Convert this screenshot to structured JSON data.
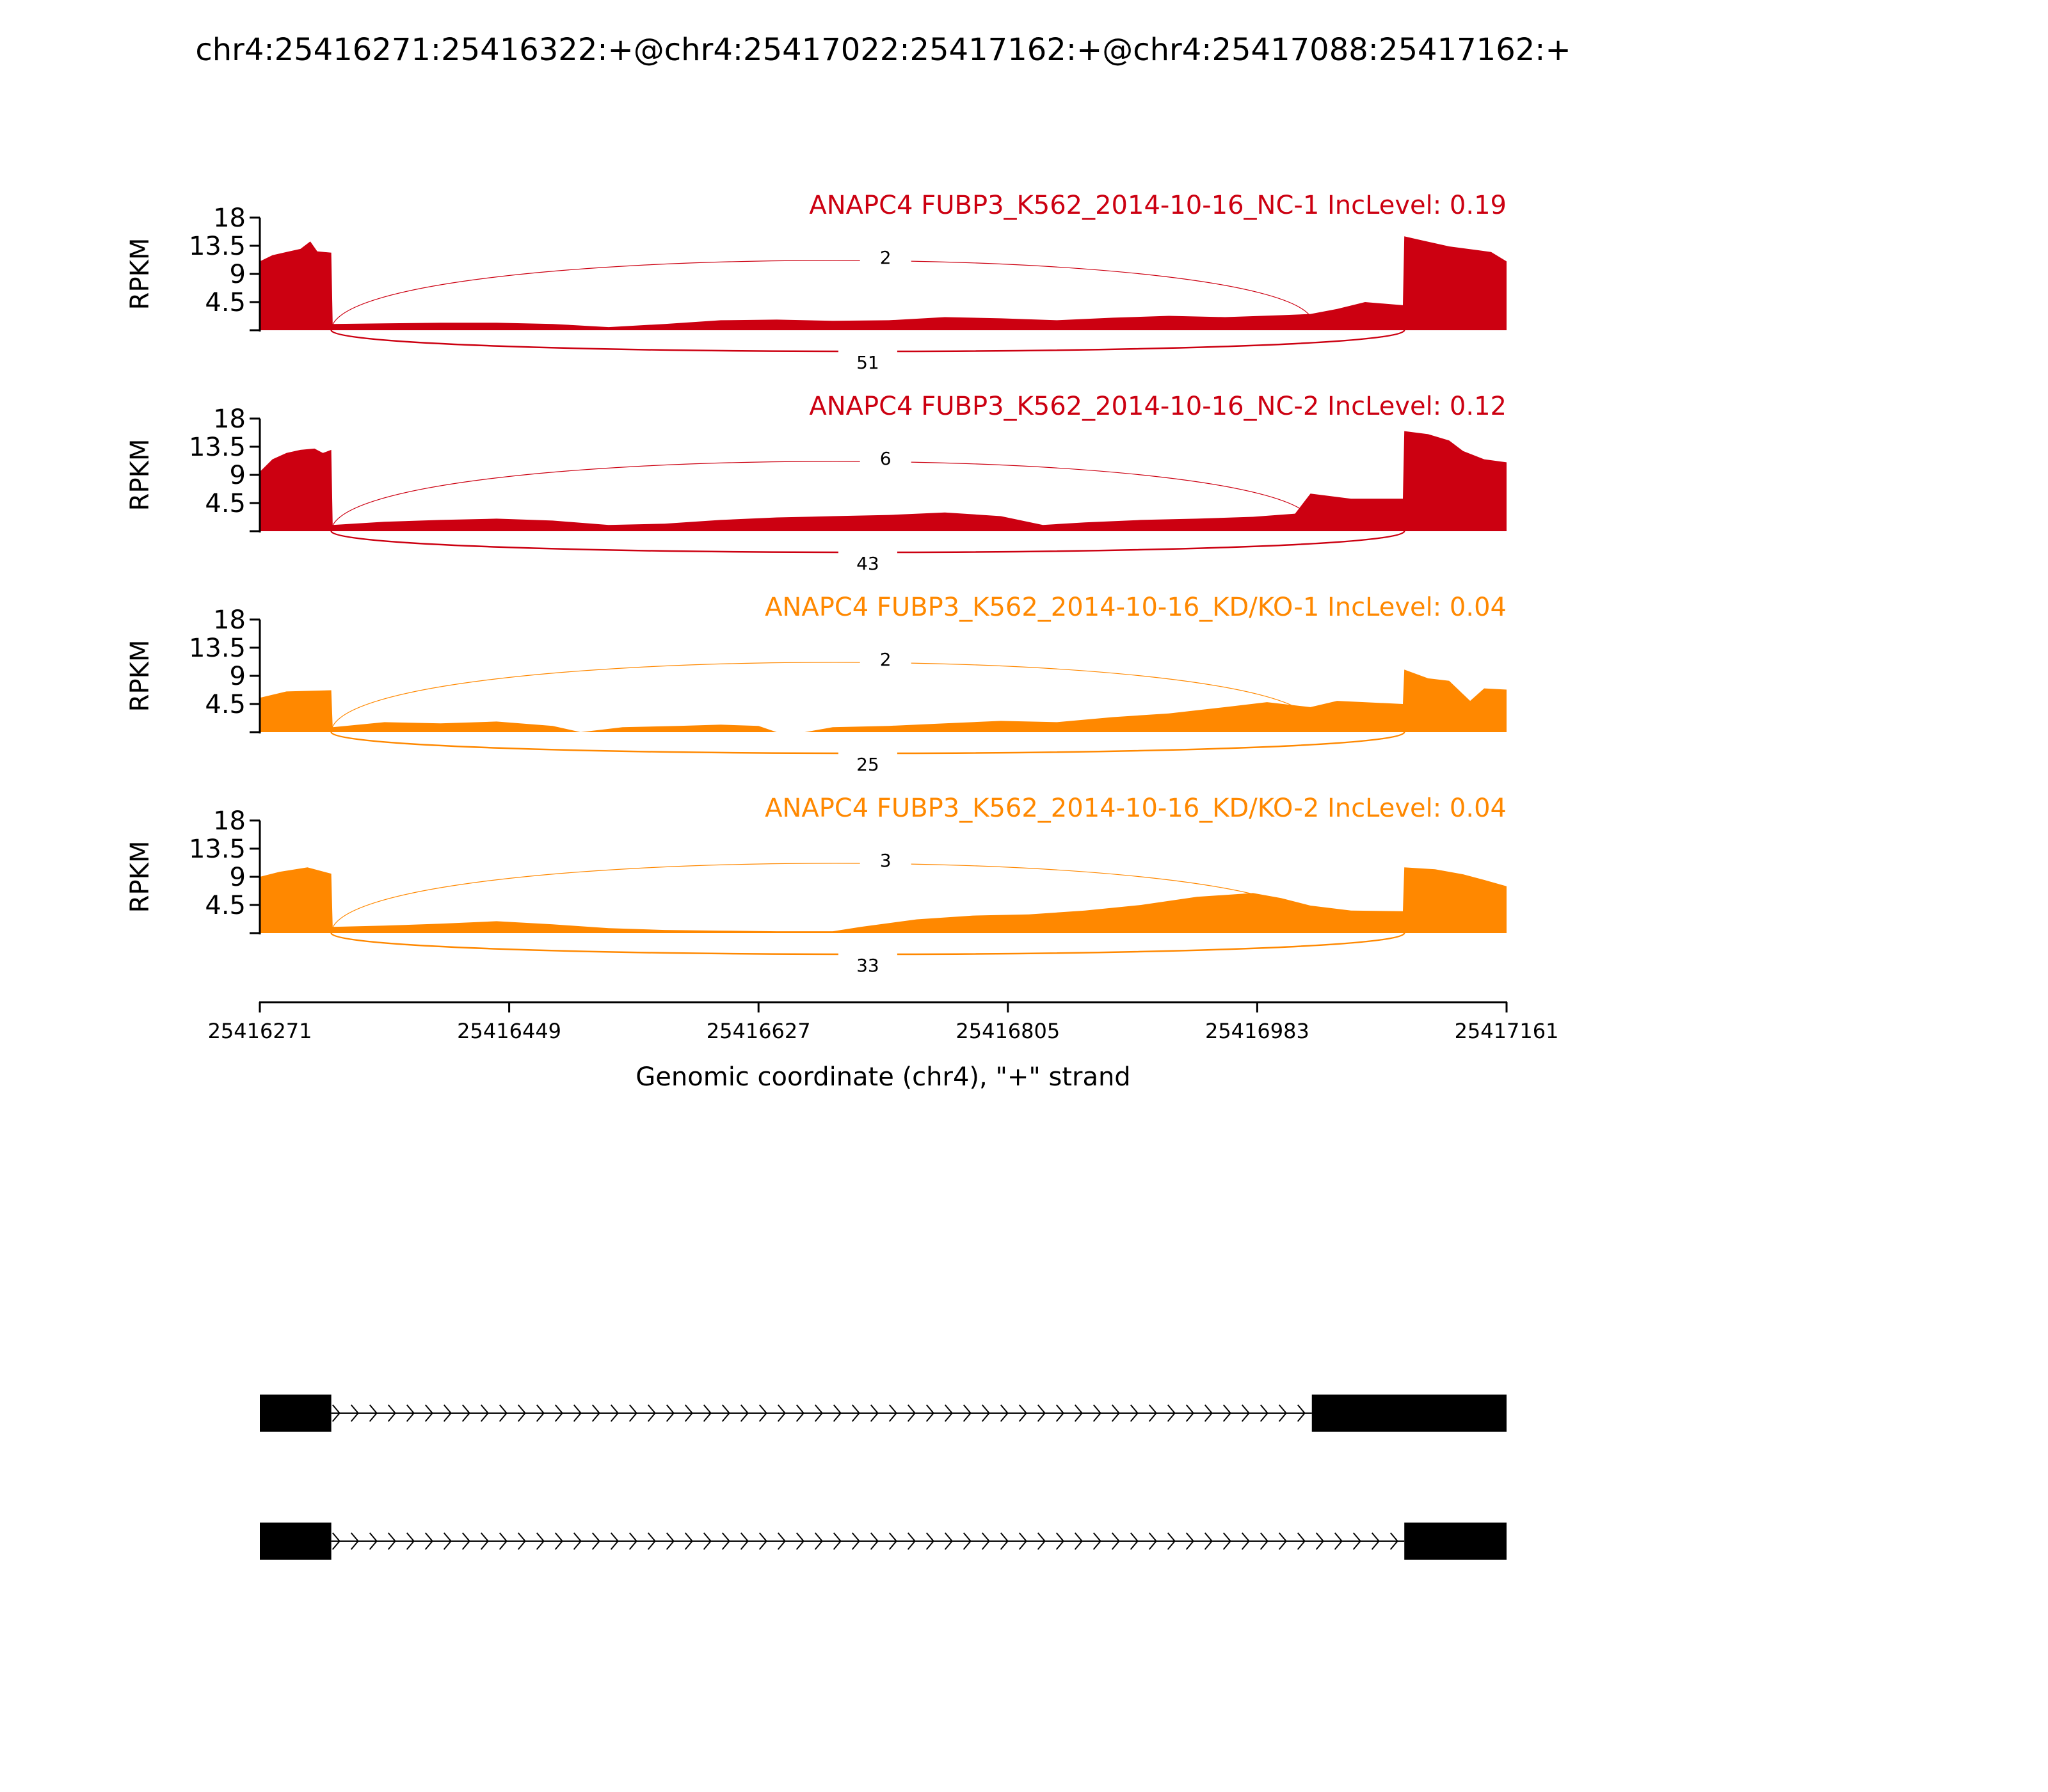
{
  "chart_data": {
    "type": "area",
    "title": "chr4:25416271:25416322:+@chr4:25417022:25417162:+@chr4:25417088:25417162:+",
    "xlabel": "Genomic coordinate (chr4), \"+\" strand",
    "ylabel": "RPKM",
    "xlim": [
      25416271,
      25417161
    ],
    "ylim": [
      0,
      18
    ],
    "x_ticks": [
      "25416271",
      "25416449",
      "25416627",
      "25416805",
      "25416983",
      "25417161"
    ],
    "y_ticks": [
      "4.5",
      "9",
      "13.5",
      "18"
    ],
    "colors": {
      "nc": "#cc0011",
      "kd": "#ff8800"
    },
    "exons": {
      "upstream": [
        25416271,
        25416322
      ],
      "skipped": [
        25417022,
        25417088
      ],
      "downstream": [
        25417088,
        25417161
      ]
    },
    "series": [
      {
        "name": "ANAPC4 FUBP3_K562_2014-10-16_NC-1 IncLevel: 0.19",
        "color": "#cc0011",
        "junctions": {
          "upper": "2",
          "lower": "51"
        },
        "profile": [
          [
            25416271,
            11.0
          ],
          [
            25416280,
            12.0
          ],
          [
            25416290,
            12.5
          ],
          [
            25416300,
            13.0
          ],
          [
            25416307,
            14.2
          ],
          [
            25416312,
            12.6
          ],
          [
            25416322,
            12.4
          ],
          [
            25416323,
            1.0
          ],
          [
            25416360,
            1.1
          ],
          [
            25416400,
            1.2
          ],
          [
            25416440,
            1.2
          ],
          [
            25416480,
            1.0
          ],
          [
            25416520,
            0.5
          ],
          [
            25416560,
            1.0
          ],
          [
            25416600,
            1.6
          ],
          [
            25416640,
            1.7
          ],
          [
            25416680,
            1.5
          ],
          [
            25416720,
            1.6
          ],
          [
            25416760,
            2.1
          ],
          [
            25416800,
            1.9
          ],
          [
            25416840,
            1.6
          ],
          [
            25416880,
            2.0
          ],
          [
            25416920,
            2.3
          ],
          [
            25416960,
            2.1
          ],
          [
            25417000,
            2.4
          ],
          [
            25417021,
            2.6
          ],
          [
            25417040,
            3.4
          ],
          [
            25417060,
            4.5
          ],
          [
            25417087,
            4.0
          ],
          [
            25417088,
            15.0
          ],
          [
            25417100,
            14.4
          ],
          [
            25417120,
            13.4
          ],
          [
            25417140,
            12.8
          ],
          [
            25417150,
            12.5
          ],
          [
            25417161,
            11.0
          ]
        ]
      },
      {
        "name": "ANAPC4 FUBP3_K562_2014-10-16_NC-2 IncLevel: 0.12",
        "color": "#cc0011",
        "junctions": {
          "upper": "6",
          "lower": "43"
        },
        "profile": [
          [
            25416271,
            9.5
          ],
          [
            25416280,
            11.5
          ],
          [
            25416290,
            12.5
          ],
          [
            25416300,
            13.0
          ],
          [
            25416310,
            13.2
          ],
          [
            25416316,
            12.5
          ],
          [
            25416322,
            13.0
          ],
          [
            25416323,
            1.0
          ],
          [
            25416360,
            1.5
          ],
          [
            25416400,
            1.8
          ],
          [
            25416440,
            2.0
          ],
          [
            25416480,
            1.7
          ],
          [
            25416520,
            1.0
          ],
          [
            25416560,
            1.2
          ],
          [
            25416600,
            1.8
          ],
          [
            25416640,
            2.2
          ],
          [
            25416680,
            2.4
          ],
          [
            25416720,
            2.6
          ],
          [
            25416760,
            3.0
          ],
          [
            25416800,
            2.4
          ],
          [
            25416830,
            1.0
          ],
          [
            25416860,
            1.4
          ],
          [
            25416900,
            1.8
          ],
          [
            25416940,
            2.0
          ],
          [
            25416980,
            2.3
          ],
          [
            25417010,
            2.8
          ],
          [
            25417021,
            6.0
          ],
          [
            25417050,
            5.2
          ],
          [
            25417087,
            5.2
          ],
          [
            25417088,
            16.0
          ],
          [
            25417105,
            15.5
          ],
          [
            25417120,
            14.5
          ],
          [
            25417130,
            12.8
          ],
          [
            25417145,
            11.5
          ],
          [
            25417161,
            11.0
          ]
        ]
      },
      {
        "name": "ANAPC4 FUBP3_K562_2014-10-16_KD/KO-1 IncLevel: 0.04",
        "color": "#ff8800",
        "junctions": {
          "upper": "2",
          "lower": "25"
        },
        "profile": [
          [
            25416271,
            5.5
          ],
          [
            25416290,
            6.5
          ],
          [
            25416322,
            6.7
          ],
          [
            25416323,
            0.8
          ],
          [
            25416360,
            1.6
          ],
          [
            25416400,
            1.4
          ],
          [
            25416440,
            1.7
          ],
          [
            25416480,
            1.0
          ],
          [
            25416500,
            0.0
          ],
          [
            25416530,
            0.8
          ],
          [
            25416570,
            1.0
          ],
          [
            25416600,
            1.2
          ],
          [
            25416627,
            1.0
          ],
          [
            25416640,
            0.0
          ],
          [
            25416660,
            0.0
          ],
          [
            25416680,
            0.8
          ],
          [
            25416720,
            1.0
          ],
          [
            25416760,
            1.4
          ],
          [
            25416800,
            1.8
          ],
          [
            25416840,
            1.6
          ],
          [
            25416880,
            2.4
          ],
          [
            25416920,
            3.0
          ],
          [
            25416960,
            4.0
          ],
          [
            25416990,
            4.8
          ],
          [
            25417021,
            4.0
          ],
          [
            25417040,
            5.0
          ],
          [
            25417087,
            4.5
          ],
          [
            25417088,
            10.0
          ],
          [
            25417105,
            8.6
          ],
          [
            25417120,
            8.2
          ],
          [
            25417135,
            5.0
          ],
          [
            25417145,
            7.0
          ],
          [
            25417161,
            6.8
          ]
        ]
      },
      {
        "name": "ANAPC4 FUBP3_K562_2014-10-16_KD/KO-2 IncLevel: 0.04",
        "color": "#ff8800",
        "junctions": {
          "upper": "3",
          "lower": "33"
        },
        "profile": [
          [
            25416271,
            9.0
          ],
          [
            25416285,
            9.8
          ],
          [
            25416305,
            10.5
          ],
          [
            25416322,
            9.5
          ],
          [
            25416323,
            1.0
          ],
          [
            25416360,
            1.2
          ],
          [
            25416400,
            1.5
          ],
          [
            25416440,
            1.9
          ],
          [
            25416480,
            1.4
          ],
          [
            25416520,
            0.8
          ],
          [
            25416560,
            0.5
          ],
          [
            25416600,
            0.4
          ],
          [
            25416640,
            0.3
          ],
          [
            25416680,
            0.3
          ],
          [
            25416700,
            1.0
          ],
          [
            25416740,
            2.2
          ],
          [
            25416780,
            2.8
          ],
          [
            25416820,
            3.0
          ],
          [
            25416860,
            3.6
          ],
          [
            25416900,
            4.5
          ],
          [
            25416940,
            5.8
          ],
          [
            25416980,
            6.4
          ],
          [
            25417000,
            5.6
          ],
          [
            25417021,
            4.4
          ],
          [
            25417050,
            3.6
          ],
          [
            25417087,
            3.5
          ],
          [
            25417088,
            10.5
          ],
          [
            25417110,
            10.2
          ],
          [
            25417130,
            9.4
          ],
          [
            25417145,
            8.5
          ],
          [
            25417161,
            7.5
          ]
        ]
      }
    ],
    "isoforms": [
      {
        "exons": [
          [
            25416271,
            25416322
          ],
          [
            25417022,
            25417161
          ]
        ]
      },
      {
        "exons": [
          [
            25416271,
            25416322
          ],
          [
            25417088,
            25417161
          ]
        ]
      }
    ]
  }
}
